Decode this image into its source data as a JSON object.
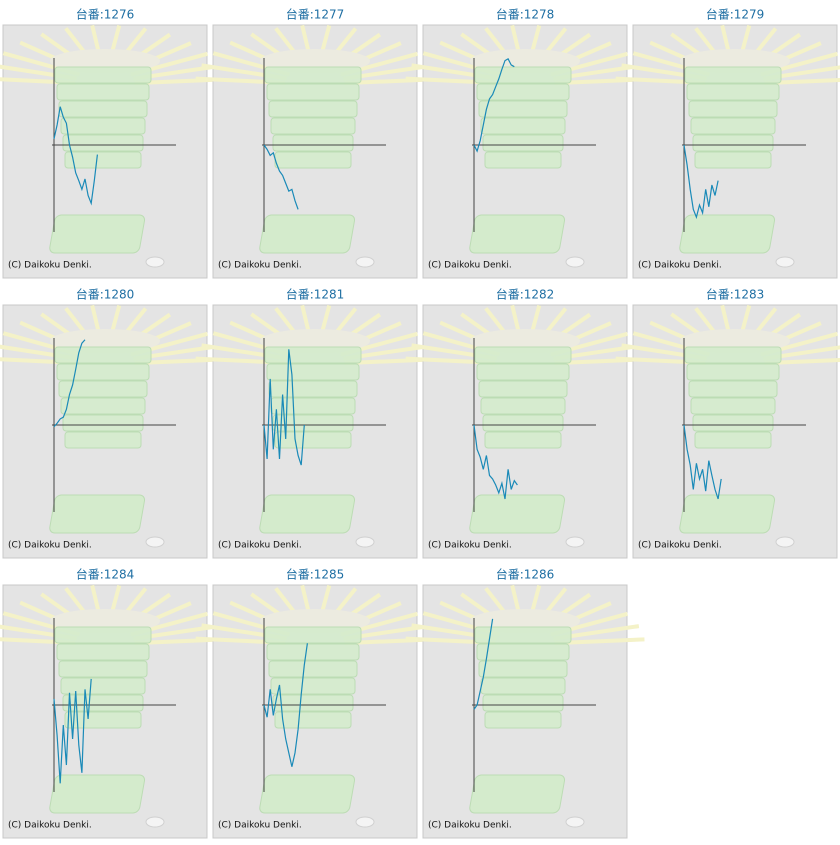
{
  "chart_data": [
    {
      "type": "line",
      "title": "台番:1276",
      "copyright": "(C) Daikoku Denki.",
      "color": "#1a8ab8",
      "xlim": [
        0,
        40
      ],
      "ylim": [
        -100,
        100
      ],
      "values": [
        7,
        23,
        44,
        32,
        25,
        0,
        -14,
        -32,
        -41,
        -51,
        -39,
        -58,
        -67,
        -41,
        -11
      ]
    },
    {
      "type": "line",
      "title": "台番:1277",
      "copyright": "(C) Daikoku Denki.",
      "color": "#1a8ab8",
      "xlim": [
        0,
        40
      ],
      "ylim": [
        -100,
        100
      ],
      "values": [
        0,
        -5,
        -12,
        -9,
        -21,
        -30,
        -35,
        -44,
        -53,
        -51,
        -64,
        -74
      ]
    },
    {
      "type": "line",
      "title": "台番:1278",
      "copyright": "(C) Daikoku Denki.",
      "color": "#1a8ab8",
      "xlim": [
        0,
        40
      ],
      "ylim": [
        -100,
        100
      ],
      "values": [
        0,
        -7,
        5,
        23,
        41,
        53,
        58,
        67,
        76,
        87,
        97,
        99,
        92,
        90
      ]
    },
    {
      "type": "line",
      "title": "台番:1279",
      "copyright": "(C) Daikoku Denki.",
      "color": "#1a8ab8",
      "xlim": [
        0,
        40
      ],
      "ylim": [
        -100,
        100
      ],
      "values": [
        0,
        -23,
        -51,
        -74,
        -83,
        -69,
        -78,
        -51,
        -71,
        -46,
        -58,
        -41
      ]
    },
    {
      "type": "line",
      "title": "台番:1280",
      "copyright": "(C) Daikoku Denki.",
      "color": "#1a8ab8",
      "xlim": [
        0,
        40
      ],
      "ylim": [
        -100,
        100
      ],
      "values": [
        -2,
        2,
        7,
        9,
        18,
        35,
        46,
        64,
        83,
        94,
        98
      ]
    },
    {
      "type": "line",
      "title": "台番:1281",
      "copyright": "(C) Daikoku Denki.",
      "color": "#1a8ab8",
      "xlim": [
        0,
        40
      ],
      "ylim": [
        -100,
        100
      ],
      "values": [
        0,
        -39,
        53,
        -28,
        18,
        -39,
        35,
        -16,
        87,
        58,
        -16,
        -35,
        -46,
        0
      ]
    },
    {
      "type": "line",
      "title": "台番:1282",
      "copyright": "(C) Daikoku Denki.",
      "color": "#1a8ab8",
      "xlim": [
        0,
        40
      ],
      "ylim": [
        -100,
        100
      ],
      "values": [
        0,
        -28,
        -37,
        -51,
        -35,
        -58,
        -62,
        -69,
        -78,
        -67,
        -85,
        -51,
        -74,
        -64,
        -69
      ]
    },
    {
      "type": "line",
      "title": "台番:1283",
      "copyright": "(C) Daikoku Denki.",
      "color": "#1a8ab8",
      "xlim": [
        0,
        40
      ],
      "ylim": [
        -100,
        100
      ],
      "values": [
        0,
        -28,
        -46,
        -74,
        -44,
        -62,
        -51,
        -76,
        -41,
        -58,
        -74,
        -85,
        -62
      ]
    },
    {
      "type": "line",
      "title": "台番:1284",
      "copyright": "(C) Daikoku Denki.",
      "color": "#1a8ab8",
      "xlim": [
        0,
        40
      ],
      "ylim": [
        -100,
        100
      ],
      "values": [
        7,
        -35,
        -90,
        -23,
        -69,
        14,
        -39,
        16,
        -46,
        -78,
        18,
        -16,
        30
      ]
    },
    {
      "type": "line",
      "title": "台番:1285",
      "copyright": "(C) Daikoku Denki.",
      "color": "#1a8ab8",
      "xlim": [
        0,
        40
      ],
      "ylim": [
        -100,
        100
      ],
      "values": [
        0,
        -14,
        18,
        -12,
        7,
        23,
        -16,
        -39,
        -55,
        -71,
        -55,
        -28,
        12,
        46,
        71
      ]
    },
    {
      "type": "line",
      "title": "台番:1286",
      "copyright": "(C) Daikoku Denki.",
      "color": "#1a8ab8",
      "xlim": [
        0,
        40
      ],
      "ylim": [
        -100,
        100
      ],
      "values": [
        -5,
        0,
        16,
        32,
        53,
        76,
        99
      ]
    }
  ]
}
